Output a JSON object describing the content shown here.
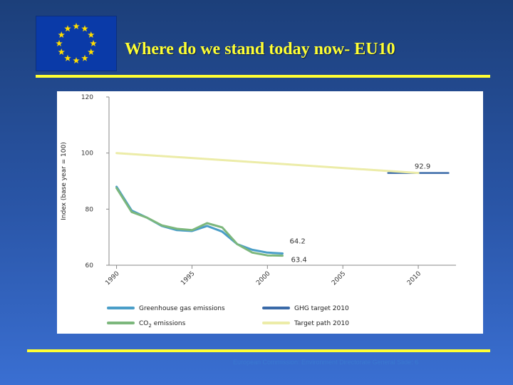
{
  "slide": {
    "title": "Where do we stand today now- EU10",
    "footer": "European Commission: Environment Directorate General Slide: 6",
    "flag_icon": "eu-flag-icon",
    "accent_color": "#ffff33"
  },
  "chart_data": {
    "type": "line",
    "title": "",
    "ylabel": "Index (base year = 100)",
    "xlabel": "",
    "xlim": [
      1989.5,
      2012.5
    ],
    "ylim": [
      60,
      120
    ],
    "xticks": [
      1990,
      1995,
      2000,
      2005,
      2010
    ],
    "yticks": [
      60,
      80,
      100,
      120
    ],
    "series": [
      {
        "name": "Greenhouse gas emissions",
        "color": "#4a9ec8",
        "x": [
          1990,
          1991,
          1992,
          1993,
          1994,
          1995,
          1996,
          1997,
          1998,
          1999,
          2000,
          2001
        ],
        "y": [
          88,
          79.5,
          77,
          74,
          72.5,
          72.2,
          74,
          72,
          67.5,
          65.5,
          64.5,
          64.2
        ]
      },
      {
        "name": "CO2 emissions",
        "color": "#7cb77c",
        "x": [
          1990,
          1991,
          1992,
          1993,
          1994,
          1995,
          1996,
          1997,
          1998,
          1999,
          2000,
          2001
        ],
        "y": [
          87.5,
          79,
          77,
          74.2,
          73,
          72.5,
          75,
          73.5,
          67.5,
          64.5,
          63.5,
          63.4
        ]
      },
      {
        "name": "GHG target 2010",
        "color": "#3a6aa8",
        "x": [
          2008,
          2012
        ],
        "y": [
          92.9,
          92.9
        ]
      },
      {
        "name": "Target path 2010",
        "color": "#ececa8",
        "x": [
          1990,
          2010
        ],
        "y": [
          100,
          92.9
        ]
      }
    ],
    "annotations": [
      {
        "text": "92.9",
        "x": 2010,
        "y": 92.9
      },
      {
        "text": "64.2",
        "x": 2001,
        "y": 64.2
      },
      {
        "text": "63.4",
        "x": 2001,
        "y": 63.4
      }
    ],
    "legend": {
      "position": "bottom",
      "items": [
        {
          "label": "Greenhouse gas emissions",
          "color": "#4a9ec8"
        },
        {
          "label": "GHG target 2010",
          "color": "#3a6aa8"
        },
        {
          "label_main": "CO",
          "label_sub": "2",
          "label_rest": " emissions",
          "color": "#7cb77c"
        },
        {
          "label": "Target path 2010",
          "color": "#ececa8"
        }
      ]
    }
  }
}
